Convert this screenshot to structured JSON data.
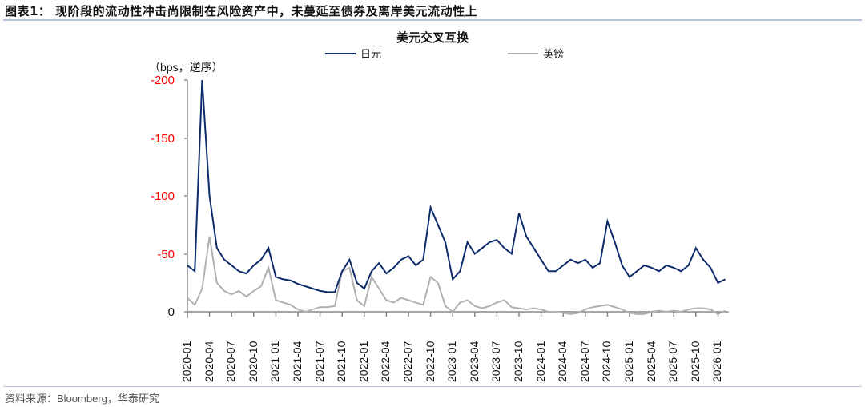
{
  "figure": {
    "title": "图表1： 现阶段的流动性冲击尚限制在风险资产中，未蔓延至债券及离岸美元流动性上",
    "source": "资料来源：Bloomberg，华泰研究"
  },
  "colors": {
    "jpy": "#0d2b6b",
    "gbp": "#b0b0b0",
    "neg_tick": "#ff0000",
    "axis": "#888888",
    "rule": "#b7c3d6"
  },
  "chart_data": {
    "type": "line",
    "title": "美元交叉互换",
    "xlabel": "",
    "ylabel": "（bps，逆序）",
    "ylim": [
      -200,
      0
    ],
    "y_reversed": true,
    "yticks": [
      "-200",
      "-150",
      "-100",
      "-50",
      "0"
    ],
    "legend_position": "top",
    "x_ticks": [
      "2020-01",
      "2020-04",
      "2020-07",
      "2020-10",
      "2021-01",
      "2021-04",
      "2021-07",
      "2021-10",
      "2022-01",
      "2022-04",
      "2022-07",
      "2022-10",
      "2023-01",
      "2023-04",
      "2023-07",
      "2023-10",
      "2024-01",
      "2024-04",
      "2024-07",
      "2024-10",
      "2025-01",
      "2025-04",
      "2025-07",
      "2025-10",
      "2026-01"
    ],
    "x": [
      "2020-01",
      "2020-02",
      "2020-03",
      "2020-04",
      "2020-05",
      "2020-06",
      "2020-07",
      "2020-08",
      "2020-09",
      "2020-10",
      "2020-11",
      "2020-12",
      "2021-01",
      "2021-02",
      "2021-03",
      "2021-04",
      "2021-05",
      "2021-06",
      "2021-07",
      "2021-08",
      "2021-09",
      "2021-10",
      "2021-11",
      "2021-12",
      "2022-01",
      "2022-02",
      "2022-03",
      "2022-04",
      "2022-05",
      "2022-06",
      "2022-07",
      "2022-08",
      "2022-09",
      "2022-10",
      "2022-11",
      "2022-12",
      "2023-01",
      "2023-02",
      "2023-03",
      "2023-04",
      "2023-05",
      "2023-06",
      "2023-07",
      "2023-08",
      "2023-09",
      "2023-10",
      "2023-11",
      "2023-12",
      "2024-01",
      "2024-02",
      "2024-03",
      "2024-04",
      "2024-05",
      "2024-06",
      "2024-07",
      "2024-08",
      "2024-09",
      "2024-10",
      "2024-11",
      "2024-12",
      "2025-01",
      "2025-02",
      "2025-03",
      "2025-04",
      "2025-05",
      "2025-06",
      "2025-07",
      "2025-08",
      "2025-09",
      "2025-10",
      "2025-11",
      "2025-12",
      "2026-01",
      "2026-02"
    ],
    "series": [
      {
        "name": "日元",
        "color": "#0d2b6b",
        "values": [
          -40,
          -35,
          -200,
          -100,
          -55,
          -45,
          -40,
          -35,
          -33,
          -40,
          -45,
          -55,
          -30,
          -28,
          -27,
          -24,
          -22,
          -20,
          -18,
          -17,
          -17,
          -35,
          -45,
          -25,
          -20,
          -35,
          -42,
          -33,
          -38,
          -45,
          -48,
          -40,
          -45,
          -90,
          -75,
          -60,
          -28,
          -35,
          -60,
          -50,
          -55,
          -60,
          -62,
          -55,
          -50,
          -85,
          -65,
          -55,
          -45,
          -35,
          -35,
          -40,
          -45,
          -42,
          -45,
          -38,
          -42,
          -78,
          -60,
          -40,
          -30,
          -35,
          -40,
          -38,
          -35,
          -40,
          -38,
          -35,
          -40,
          -55,
          -45,
          -38,
          -25,
          -28
        ]
      },
      {
        "name": "英镑",
        "color": "#b0b0b0",
        "values": [
          -12,
          -6,
          -20,
          -65,
          -25,
          -18,
          -15,
          -18,
          -13,
          -18,
          -22,
          -38,
          -10,
          -8,
          -6,
          -2,
          0,
          -2,
          -4,
          -4,
          -5,
          -35,
          -38,
          -10,
          -5,
          -30,
          -20,
          -10,
          -8,
          -12,
          -10,
          -8,
          -6,
          -30,
          -25,
          -5,
          0,
          -8,
          -10,
          -5,
          -3,
          -5,
          -8,
          -10,
          -4,
          -3,
          -2,
          -3,
          -2,
          0,
          0,
          1,
          2,
          1,
          -2,
          -4,
          -5,
          -6,
          -4,
          -2,
          1,
          2,
          2,
          0,
          -1,
          0,
          -1,
          0,
          -2,
          -3,
          -3,
          -2,
          2,
          -1
        ]
      }
    ]
  },
  "legend": {
    "items": [
      {
        "label": "日元"
      },
      {
        "label": "英镑"
      }
    ]
  }
}
